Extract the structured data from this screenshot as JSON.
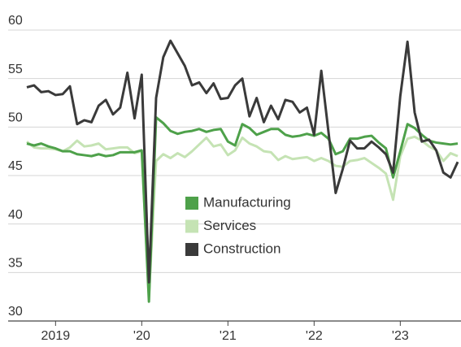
{
  "chart_data": {
    "type": "line",
    "categories": [
      null,
      null,
      null,
      null,
      "2019",
      null,
      null,
      null,
      null,
      null,
      null,
      null,
      null,
      null,
      null,
      null,
      "'20",
      null,
      null,
      null,
      null,
      null,
      null,
      null,
      null,
      null,
      null,
      null,
      "'21",
      null,
      null,
      null,
      null,
      null,
      null,
      null,
      null,
      null,
      null,
      null,
      "'22",
      null,
      null,
      null,
      null,
      null,
      null,
      null,
      null,
      null,
      null,
      null,
      "'23",
      null,
      null,
      null,
      null,
      null,
      null,
      null,
      null
    ],
    "series": [
      {
        "name": "Manufacturing",
        "color": "#4ea14a",
        "values": [
          48.3,
          48.1,
          48.3,
          48.0,
          47.8,
          47.5,
          47.5,
          47.2,
          47.1,
          47.0,
          47.2,
          47.0,
          47.1,
          47.4,
          47.4,
          47.4,
          47.6,
          32.0,
          51.0,
          50.4,
          49.6,
          49.3,
          49.5,
          49.6,
          49.8,
          49.5,
          49.7,
          49.8,
          48.5,
          48.1,
          50.3,
          49.9,
          49.2,
          49.5,
          49.8,
          49.8,
          49.2,
          49.0,
          49.1,
          49.3,
          49.1,
          49.4,
          48.8,
          47.2,
          47.5,
          48.8,
          48.8,
          49.0,
          49.1,
          48.4,
          47.8,
          44.8,
          47.5,
          50.3,
          49.9,
          49.2,
          48.6,
          48.4,
          48.3,
          48.2,
          48.3
        ]
      },
      {
        "name": "Services",
        "color": "#c5e3b4",
        "values": [
          48.5,
          47.9,
          47.8,
          47.8,
          47.7,
          47.5,
          47.9,
          48.6,
          48.0,
          48.1,
          48.3,
          47.7,
          47.8,
          47.9,
          47.9,
          47.3,
          47.5,
          32.5,
          46.5,
          47.2,
          46.8,
          47.3,
          46.9,
          47.5,
          48.2,
          48.9,
          48.0,
          48.2,
          47.1,
          47.6,
          48.9,
          48.3,
          48.0,
          47.5,
          47.4,
          46.6,
          47.0,
          46.7,
          46.8,
          46.9,
          46.5,
          46.8,
          46.5,
          46.0,
          45.9,
          46.5,
          46.6,
          46.8,
          46.3,
          45.8,
          45.2,
          42.5,
          47.0,
          48.8,
          49.0,
          48.6,
          48.0,
          47.6,
          46.5,
          47.3,
          47.0
        ]
      },
      {
        "name": "Construction",
        "color": "#3a3a3a",
        "values": [
          54.1,
          54.3,
          53.6,
          53.7,
          53.3,
          53.4,
          54.2,
          50.3,
          50.7,
          50.5,
          52.2,
          52.8,
          51.3,
          52.0,
          55.6,
          50.9,
          55.4,
          34.0,
          53.0,
          57.2,
          58.9,
          57.6,
          56.3,
          54.3,
          54.6,
          53.5,
          54.5,
          52.9,
          53.0,
          54.3,
          55.0,
          51.1,
          53.0,
          50.5,
          52.2,
          50.8,
          52.8,
          52.6,
          51.5,
          52.0,
          49.2,
          55.8,
          49.5,
          43.2,
          45.7,
          48.6,
          47.8,
          47.8,
          48.5,
          47.9,
          47.2,
          45.3,
          53.2,
          58.8,
          51.5,
          48.5,
          48.7,
          47.6,
          45.3,
          44.8,
          46.4
        ]
      }
    ],
    "ylim": [
      30,
      60
    ],
    "yticks": [
      30,
      35,
      40,
      45,
      50,
      55,
      60
    ],
    "grid": true
  }
}
